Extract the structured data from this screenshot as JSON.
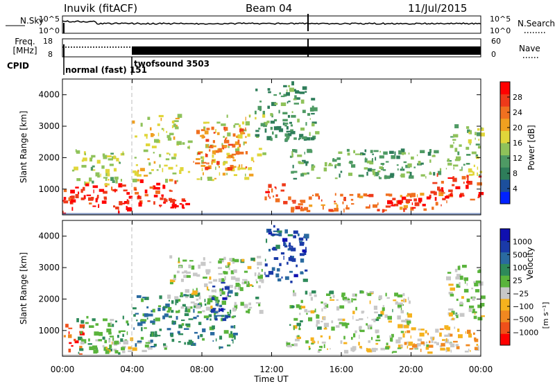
{
  "header": {
    "station": "Inuvik (fitACF)",
    "beam": "Beam 04",
    "date": "11/Jul/2015"
  },
  "status_panels": {
    "nsky_label": "N.Sky",
    "nsky_ticks": [
      "10^5",
      "10^0"
    ],
    "nsearch_label": "N.Search",
    "nsearch_ticks": [
      "10^5",
      "10^0"
    ],
    "freq_label": "Freq.",
    "freq_unit": "[MHz]",
    "freq_ticks": [
      "18",
      "8"
    ],
    "nave_label": "Nave",
    "nave_ticks": [
      "60",
      "0"
    ],
    "cpid_label": "CPID",
    "cpid_segments": [
      {
        "label": "normal (fast) 151",
        "start_hour": 0,
        "end_hour": 4
      },
      {
        "label": "twofsound 3503",
        "start_hour": 4,
        "end_hour": 24
      }
    ],
    "nsky_color": "#000000",
    "nsearch_color": "#000000"
  },
  "axes": {
    "x_ticks": [
      "00:00",
      "04:00",
      "08:00",
      "12:00",
      "16:00",
      "20:00",
      "00:00"
    ],
    "xlabel": "Time UT",
    "ylabel": "Slant Range [km]",
    "y_ticks": [
      "1000",
      "2000",
      "3000",
      "4000"
    ]
  },
  "power_colorbar": {
    "label": "Power [dB]",
    "ticks": [
      "28",
      "24",
      "20",
      "16",
      "12",
      "8",
      "4"
    ],
    "colors": [
      "#0022ff",
      "#1c4f9c",
      "#2e7d5a",
      "#4e9a64",
      "#8fc25a",
      "#e0d63a",
      "#f0a020",
      "#f07020",
      "#ee3a1a",
      "#ff0000"
    ]
  },
  "velocity_colorbar": {
    "label": "Velocity",
    "unit": "[m s⁻¹]",
    "ticks": [
      "1000",
      "500",
      "100",
      "25",
      "−25",
      "−100",
      "−500",
      "−1000"
    ],
    "colors": [
      "#ff0000",
      "#f0501a",
      "#f08820",
      "#f5b21e",
      "#c8c8c8",
      "#5ab43c",
      "#2e8a5a",
      "#2a6aa0",
      "#1a3aa8",
      "#1010b0"
    ]
  },
  "chart_data": [
    {
      "type": "heatmap",
      "title": "Power",
      "xlabel": "Time UT",
      "ylabel": "Slant Range [km]",
      "x_range_hours": [
        0,
        24
      ],
      "y_range_km": [
        180,
        4500
      ],
      "z_label": "Power [dB]",
      "z_range": [
        0,
        30
      ],
      "regions": [
        {
          "t0": 0.0,
          "t1": 4.0,
          "r0": 200,
          "r1": 1100,
          "value": 27
        },
        {
          "t0": 0.5,
          "t1": 3.5,
          "r0": 1100,
          "r1": 2200,
          "value": 14
        },
        {
          "t0": 4.0,
          "t1": 6.5,
          "r0": 350,
          "r1": 1200,
          "value": 26
        },
        {
          "t0": 5.5,
          "t1": 7.2,
          "r0": 300,
          "r1": 700,
          "value": 29
        },
        {
          "t0": 3.8,
          "t1": 11.5,
          "r0": 1200,
          "r1": 3300,
          "value": 16
        },
        {
          "t0": 7.5,
          "t1": 10.5,
          "r0": 1500,
          "r1": 2900,
          "value": 22
        },
        {
          "t0": 11.3,
          "t1": 12.8,
          "r0": 500,
          "r1": 1100,
          "value": 25
        },
        {
          "t0": 11.0,
          "t1": 14.5,
          "r0": 2500,
          "r1": 4300,
          "value": 10
        },
        {
          "t0": 12.8,
          "t1": 22.2,
          "r0": 250,
          "r1": 800,
          "value": 23
        },
        {
          "t0": 13.0,
          "t1": 22.0,
          "r0": 1300,
          "r1": 2200,
          "value": 11
        },
        {
          "t0": 18.5,
          "t1": 21.0,
          "r0": 350,
          "r1": 700,
          "value": 28
        },
        {
          "t0": 21.0,
          "t1": 24.0,
          "r0": 600,
          "r1": 1400,
          "value": 25
        },
        {
          "t0": 22.0,
          "t1": 24.0,
          "r0": 1400,
          "r1": 3000,
          "value": 13
        }
      ]
    },
    {
      "type": "heatmap",
      "title": "Velocity",
      "xlabel": "Time UT",
      "ylabel": "Slant Range [km]",
      "x_range_hours": [
        0,
        24
      ],
      "y_range_km": [
        180,
        4500
      ],
      "z_label": "Velocity [m s-1]",
      "z_range": [
        -1000,
        1000
      ],
      "regions": [
        {
          "t0": 0.0,
          "t1": 1.0,
          "r0": 200,
          "r1": 1100,
          "value": -700
        },
        {
          "t0": 0.8,
          "t1": 3.8,
          "r0": 200,
          "r1": 1400,
          "value": 150
        },
        {
          "t0": 2.0,
          "t1": 6.0,
          "r0": 250,
          "r1": 700,
          "value": -110
        },
        {
          "t0": 4.0,
          "t1": 10.0,
          "r0": 400,
          "r1": 2100,
          "value": 300
        },
        {
          "t0": 6.0,
          "t1": 11.5,
          "r0": 1500,
          "r1": 3300,
          "value": 0
        },
        {
          "t0": 8.5,
          "t1": 9.5,
          "r0": 1200,
          "r1": 2500,
          "value": 700
        },
        {
          "t0": 11.5,
          "t1": 14.0,
          "r0": 2500,
          "r1": 4300,
          "value": 600
        },
        {
          "t0": 12.5,
          "t1": 22.5,
          "r0": 250,
          "r1": 800,
          "value": -70
        },
        {
          "t0": 13.0,
          "t1": 20.0,
          "r0": 900,
          "r1": 2200,
          "value": 0
        },
        {
          "t0": 19.5,
          "t1": 24.0,
          "r0": 300,
          "r1": 1100,
          "value": -350
        },
        {
          "t0": 22.0,
          "t1": 24.0,
          "r0": 1300,
          "r1": 3000,
          "value": 0
        }
      ]
    }
  ]
}
